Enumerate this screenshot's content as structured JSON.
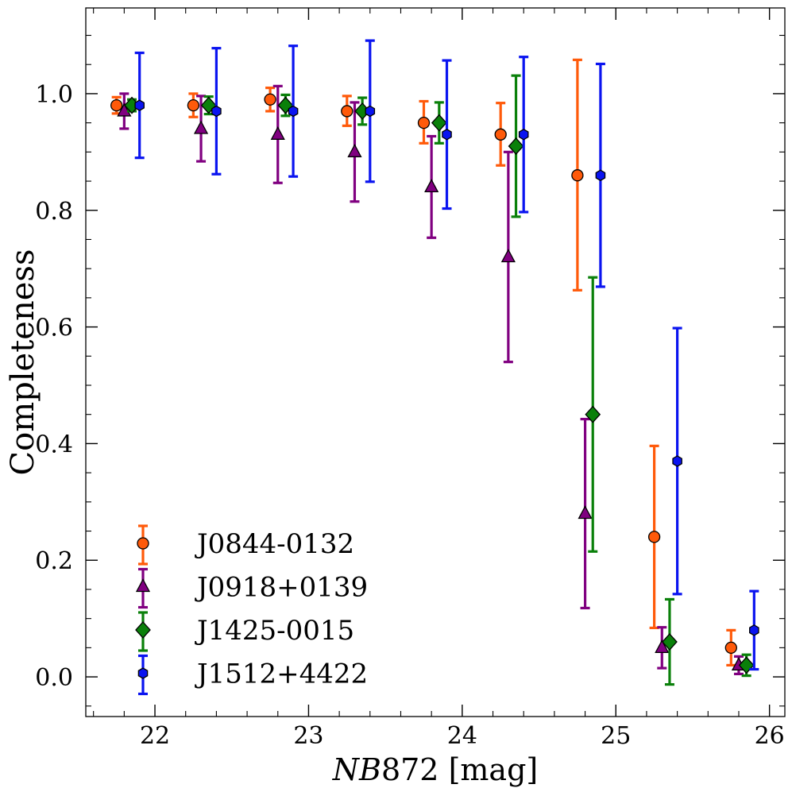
{
  "chart_data": {
    "type": "scatter",
    "title": "",
    "xlabel_italic": "NB",
    "xlabel_rest": "872 [mag]",
    "ylabel": "Completeness",
    "xlim": [
      21.55,
      26.1
    ],
    "ylim": [
      -0.068,
      1.147
    ],
    "xticks": [
      22,
      23,
      24,
      25,
      26
    ],
    "xtick_labels": [
      "22",
      "23",
      "24",
      "25",
      "26"
    ],
    "yticks": [
      0.0,
      0.2,
      0.4,
      0.6,
      0.8,
      1.0
    ],
    "ytick_labels": [
      "0.0",
      "0.2",
      "0.4",
      "0.6",
      "0.8",
      "1.0"
    ],
    "x_minor_step": 0.2,
    "y_minor_step": 0.05,
    "grid": false,
    "legend_position": "lower-left",
    "series": [
      {
        "name": "J0844-0132",
        "color": "#ff5a0a",
        "marker": "circle",
        "x": [
          21.75,
          22.25,
          22.75,
          23.25,
          23.75,
          24.25,
          24.75,
          25.25,
          25.75
        ],
        "y": [
          0.98,
          0.98,
          0.99,
          0.97,
          0.95,
          0.93,
          0.86,
          0.24,
          0.05
        ],
        "yerr_low": [
          0.966,
          0.96,
          0.97,
          0.945,
          0.915,
          0.877,
          0.663,
          0.084,
          0.02
        ],
        "yerr_high": [
          0.994,
          1.0,
          1.01,
          0.996,
          0.987,
          0.984,
          1.058,
          0.396,
          0.08
        ]
      },
      {
        "name": "J0918+0139",
        "color": "#800080",
        "marker": "triangle",
        "x": [
          21.8,
          22.3,
          22.8,
          23.3,
          23.8,
          24.3,
          24.8,
          25.3,
          25.8
        ],
        "y": [
          0.97,
          0.94,
          0.93,
          0.9,
          0.84,
          0.72,
          0.28,
          0.05,
          0.02
        ],
        "yerr_low": [
          0.94,
          0.884,
          0.847,
          0.815,
          0.753,
          0.54,
          0.118,
          0.015,
          0.005
        ],
        "yerr_high": [
          1.0,
          0.996,
          1.013,
          0.985,
          0.927,
          0.9,
          0.442,
          0.085,
          0.035
        ]
      },
      {
        "name": "J1425-0015",
        "color": "#0a800a",
        "marker": "diamond",
        "x": [
          21.85,
          22.35,
          22.85,
          23.35,
          23.85,
          24.35,
          24.85,
          25.35,
          25.85
        ],
        "y": [
          0.98,
          0.98,
          0.98,
          0.97,
          0.95,
          0.91,
          0.45,
          0.06,
          0.02
        ],
        "yerr_low": [
          0.97,
          0.965,
          0.962,
          0.947,
          0.915,
          0.789,
          0.215,
          -0.013,
          0.002
        ],
        "yerr_high": [
          0.99,
          0.995,
          0.998,
          0.993,
          0.985,
          1.031,
          0.685,
          0.133,
          0.038
        ]
      },
      {
        "name": "J1512+4422",
        "color": "#0a14f0",
        "marker": "hexagon",
        "x": [
          21.9,
          22.4,
          22.9,
          23.4,
          23.9,
          24.4,
          24.9,
          25.4,
          25.9
        ],
        "y": [
          0.98,
          0.97,
          0.97,
          0.97,
          0.93,
          0.93,
          0.86,
          0.37,
          0.08
        ],
        "yerr_low": [
          0.89,
          0.862,
          0.858,
          0.849,
          0.803,
          0.797,
          0.669,
          0.142,
          0.013
        ],
        "yerr_high": [
          1.07,
          1.078,
          1.082,
          1.091,
          1.057,
          1.063,
          1.051,
          0.598,
          0.147
        ]
      }
    ]
  }
}
